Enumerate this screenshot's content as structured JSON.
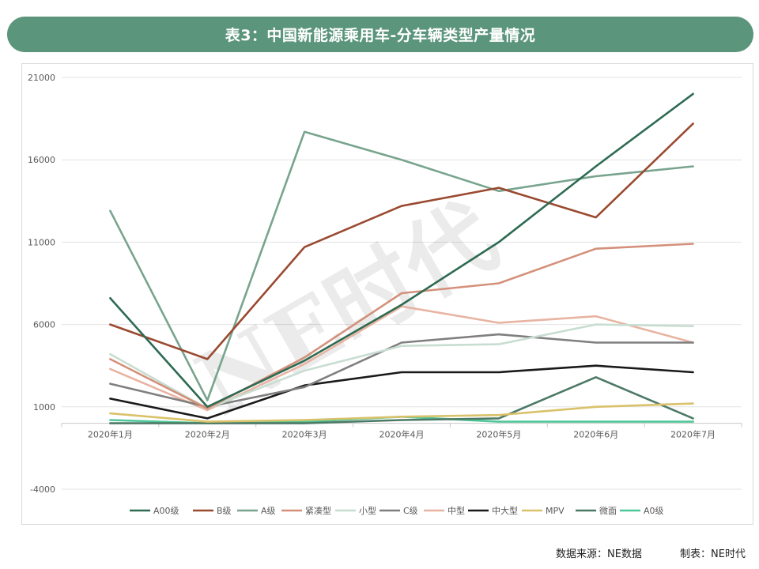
{
  "header": {
    "title": "表3：中国新能源乘用车-分车辆类型产量情况"
  },
  "watermark": "NE时代",
  "footer": {
    "source": "数据来源：NE数据",
    "made_by": "制表：NE时代"
  },
  "chart_data": {
    "type": "line",
    "categories": [
      "2020年1月",
      "2020年2月",
      "2020年3月",
      "2020年4月",
      "2020年5月",
      "2020年6月",
      "2020年7月"
    ],
    "ylim": [
      -4000,
      21000
    ],
    "yticks": [
      21000,
      16000,
      11000,
      6000,
      1000,
      -4000
    ],
    "grid": true,
    "legend_position": "bottom",
    "series": [
      {
        "name": "A00级",
        "color": "#2e6b52",
        "values": [
          7600,
          1000,
          3800,
          7200,
          11000,
          15600,
          20000
        ]
      },
      {
        "name": "B级",
        "color": "#9a4a30",
        "values": [
          6000,
          3900,
          10700,
          13200,
          14300,
          12500,
          18200
        ]
      },
      {
        "name": "A级",
        "color": "#78a48e",
        "values": [
          12900,
          1400,
          17700,
          16000,
          14100,
          15000,
          15600
        ]
      },
      {
        "name": "紧凑型",
        "color": "#d4907a",
        "values": [
          3900,
          900,
          4000,
          7900,
          8500,
          10600,
          10900
        ]
      },
      {
        "name": "小型",
        "color": "#c8ddd2",
        "values": [
          4200,
          900,
          3200,
          4700,
          4800,
          6000,
          5900
        ]
      },
      {
        "name": "C级",
        "color": "#7f7f7f",
        "values": [
          2400,
          1000,
          2200,
          4900,
          5400,
          4900,
          4900
        ]
      },
      {
        "name": "中型",
        "color": "#e8b4a2",
        "values": [
          3300,
          800,
          3600,
          7100,
          6100,
          6500,
          4900
        ]
      },
      {
        "name": "中大型",
        "color": "#1a1a1a",
        "values": [
          1500,
          300,
          2300,
          3100,
          3100,
          3500,
          3100
        ]
      },
      {
        "name": "MPV",
        "color": "#d9c26b",
        "values": [
          600,
          100,
          200,
          400,
          500,
          1000,
          1200
        ]
      },
      {
        "name": "微面",
        "color": "#4d7a66",
        "values": [
          0,
          0,
          0,
          200,
          300,
          2800,
          300
        ]
      },
      {
        "name": "A0级",
        "color": "#4fc79a",
        "values": [
          200,
          0,
          100,
          400,
          100,
          100,
          100
        ]
      }
    ]
  }
}
